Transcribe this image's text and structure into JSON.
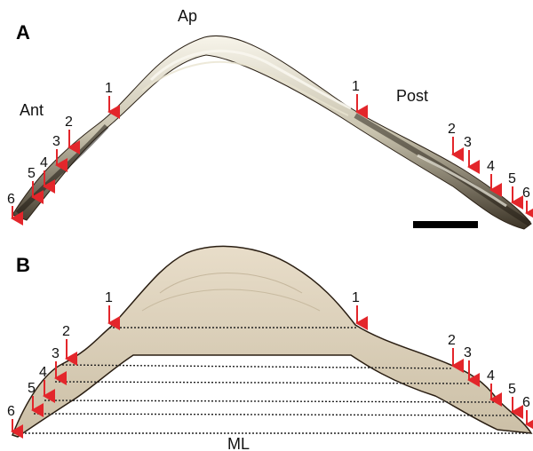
{
  "figure": {
    "panel_a": {
      "letter": "A",
      "labels": {
        "ap": "Ap",
        "ant": "Ant",
        "post": "Post"
      },
      "left_markers": [
        "1",
        "2",
        "3",
        "4",
        "5",
        "6"
      ],
      "right_markers": [
        "1",
        "2",
        "3",
        "4",
        "5",
        "6"
      ]
    },
    "panel_b": {
      "letter": "B",
      "labels": {
        "ml": "ML"
      },
      "left_markers": [
        "1",
        "2",
        "3",
        "4",
        "5",
        "6"
      ],
      "right_markers": [
        "1",
        "2",
        "3",
        "4",
        "5",
        "6"
      ]
    },
    "colors": {
      "arrow": "#e3262b",
      "shell_dark": "#3a2a1a",
      "shell_light": "#f2efe2",
      "section_fill": "#d9cdb9",
      "scale_bar": "#000000"
    }
  }
}
